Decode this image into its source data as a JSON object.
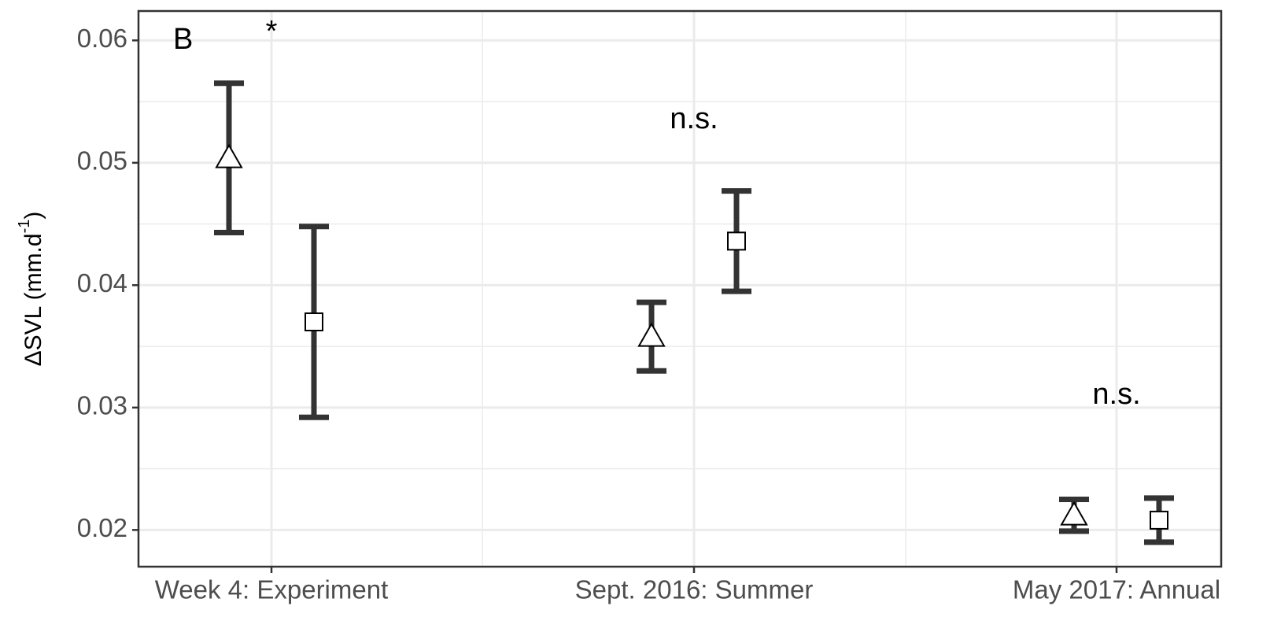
{
  "chart_data": {
    "type": "errorbar",
    "panel_label": "B",
    "y_label": {
      "text": "ΔSVL  (mm.d",
      "superscript": "-1",
      "suffix": ")"
    },
    "categories": [
      "Week 4: Experiment",
      "Sept. 2016: Summer",
      "May 2017: Annual"
    ],
    "series": [
      {
        "marker": "triangle",
        "color": "#333333",
        "values": [
          0.0504,
          0.0358,
          0.0212
        ],
        "errors": [
          0.0061,
          0.0028,
          0.0013
        ]
      },
      {
        "marker": "square",
        "color": "#333333",
        "values": [
          0.037,
          0.0436,
          0.0208
        ],
        "errors": [
          0.0078,
          0.0041,
          0.0018
        ]
      }
    ],
    "annotations": [
      {
        "text": "*",
        "x": "Week 4: Experiment"
      },
      {
        "text": "n.s.",
        "x": "Sept. 2016: Summer"
      },
      {
        "text": "n.s.",
        "x": "May 2017: Annual"
      }
    ],
    "ylim": [
      0.017,
      0.0624
    ],
    "yticks": [
      0.02,
      0.03,
      0.04,
      0.05,
      0.06
    ],
    "yticks_minor": [
      0.025,
      0.035,
      0.045,
      0.055
    ],
    "grid": true
  }
}
